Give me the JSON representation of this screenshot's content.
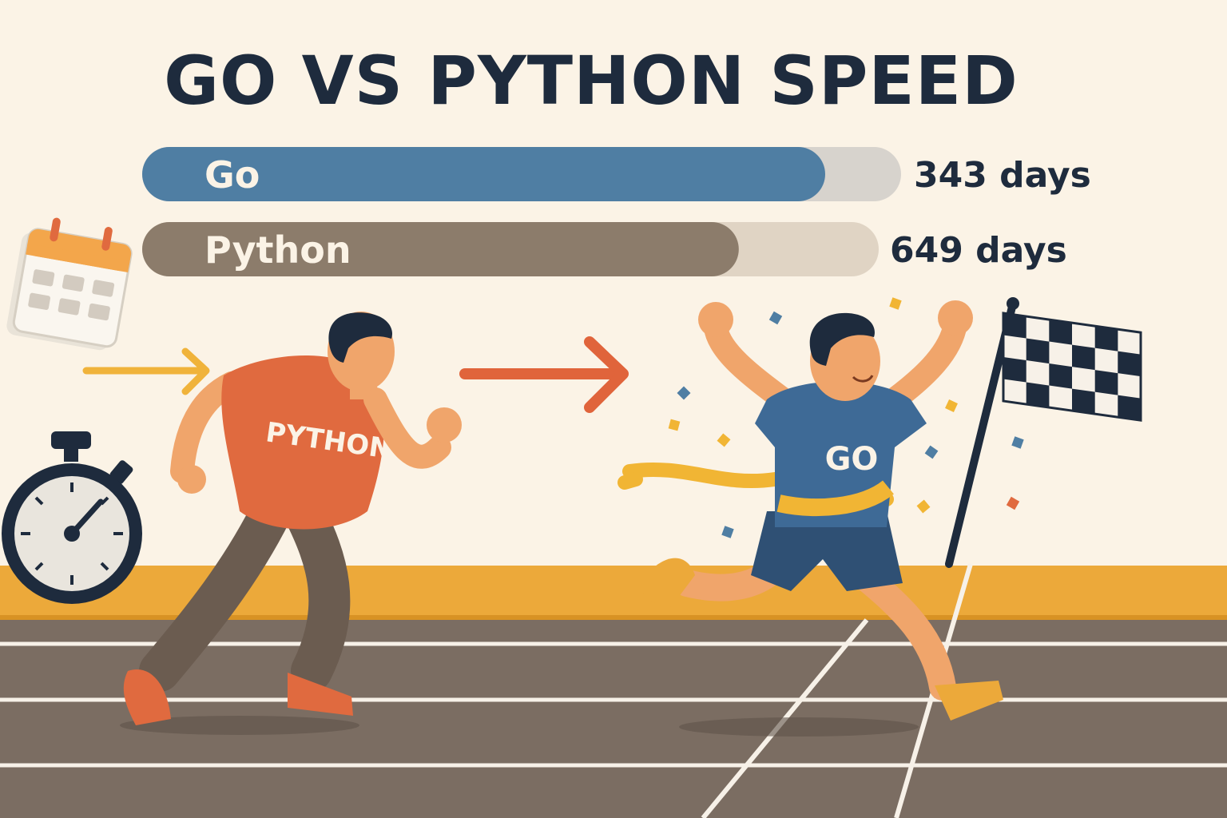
{
  "title": "GO VS PYTHON SPEED",
  "chart_data": {
    "type": "bar",
    "orientation": "horizontal",
    "title": "GO VS PYTHON SPEED",
    "categories": [
      "Go",
      "Python"
    ],
    "values": [
      343,
      649
    ],
    "value_labels": [
      "343 days",
      "649 days"
    ],
    "unit": "days",
    "bar_colors": [
      "#4f7ea3",
      "#8c7c6b"
    ],
    "track_colors": [
      "#d7d3cd",
      "#e0d4c4"
    ],
    "bar_fill_fraction": [
      0.9,
      0.81
    ],
    "xlabel": "",
    "ylabel": "",
    "grid": false,
    "legend": "none"
  },
  "illustration": {
    "python_shirt": "PYTHON",
    "go_shirt": "GO",
    "icons": [
      "calendar-icon",
      "stopwatch-icon",
      "checkered-flag-icon",
      "arrow-icon"
    ],
    "colors": {
      "background": "#fbf3e6",
      "title": "#1e2b3d",
      "python_shirt": "#e06a3f",
      "go_shirt": "#3e6a96",
      "track": "#7b6d62",
      "track_wall": "#eca93a",
      "finish_tape": "#f1b534"
    }
  }
}
